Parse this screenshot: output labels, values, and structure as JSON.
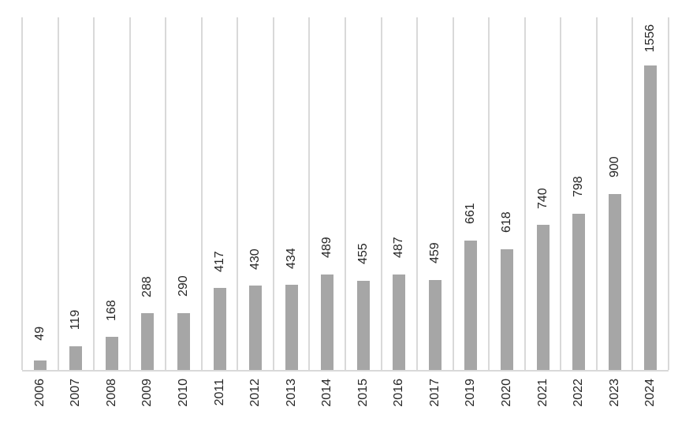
{
  "chart_data": {
    "type": "bar",
    "title": "",
    "xlabel": "",
    "ylabel": "",
    "categories": [
      "2006",
      "2007",
      "2008",
      "2009",
      "2010",
      "2011",
      "2012",
      "2013",
      "2014",
      "2015",
      "2016",
      "2017",
      "2019",
      "2020",
      "2021",
      "2022",
      "2023",
      "2024"
    ],
    "values": [
      49,
      119,
      168,
      288,
      290,
      417,
      430,
      434,
      489,
      455,
      487,
      459,
      661,
      618,
      740,
      798,
      900,
      1556
    ],
    "ylim": [
      0,
      1800
    ],
    "grid": "vertical-only",
    "legend_position": "none",
    "data_labels": "outside-end-rotated-90",
    "category_labels": "rotated-90",
    "bar_color": "#a6a6a6",
    "gridline_color": "#d9d9d9",
    "axis_line_color": "#d9d9d9",
    "label_color": "#262626",
    "background_color": "#ffffff"
  }
}
